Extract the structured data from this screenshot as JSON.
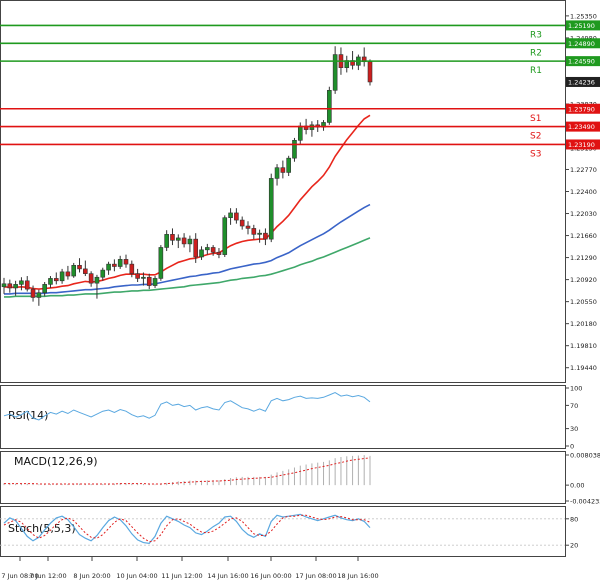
{
  "chart_data": {
    "type": "candlestick",
    "main": {
      "ylim": [
        1.192,
        1.256
      ],
      "y_ticks": [
        "1.25350",
        "1.24980",
        "1.24610",
        "1.23870",
        "1.23500",
        "1.23130",
        "1.22770",
        "1.22400",
        "1.22030",
        "1.21660",
        "1.21290",
        "1.20920",
        "1.20550",
        "1.20180",
        "1.19810",
        "1.19440"
      ],
      "current_price": "1.24236",
      "levels": [
        {
          "name": "R3",
          "value": 1.2519,
          "label": "1.25190",
          "type": "resistance"
        },
        {
          "name": "R2",
          "value": 1.2489,
          "label": "1.24890",
          "type": "resistance"
        },
        {
          "name": "R1",
          "value": 1.2459,
          "label": "1.24590",
          "type": "resistance"
        },
        {
          "name": "S1",
          "value": 1.2379,
          "label": "1.23790",
          "type": "support"
        },
        {
          "name": "S2",
          "value": 1.2349,
          "label": "1.23490",
          "type": "support"
        },
        {
          "name": "S3",
          "value": 1.2319,
          "label": "1.23190",
          "type": "support"
        }
      ],
      "candles": [
        [
          1.208,
          1.2095,
          1.2068,
          1.2085
        ],
        [
          1.2085,
          1.2092,
          1.207,
          1.2078
        ],
        [
          1.2078,
          1.209,
          1.2065,
          1.2084
        ],
        [
          1.2084,
          1.2096,
          1.2074,
          1.209
        ],
        [
          1.209,
          1.2098,
          1.2072,
          1.2076
        ],
        [
          1.2076,
          1.2082,
          1.2055,
          1.2062
        ],
        [
          1.2062,
          1.2075,
          1.2048,
          1.207
        ],
        [
          1.207,
          1.2088,
          1.2064,
          1.2084
        ],
        [
          1.2084,
          1.2098,
          1.2078,
          1.2094
        ],
        [
          1.2094,
          1.2104,
          1.2084,
          1.209
        ],
        [
          1.209,
          1.211,
          1.2085,
          1.2105
        ],
        [
          1.2105,
          1.2115,
          1.2092,
          1.2098
        ],
        [
          1.2098,
          1.212,
          1.2095,
          1.2116
        ],
        [
          1.2116,
          1.2128,
          1.2104,
          1.211
        ],
        [
          1.211,
          1.2124,
          1.2098,
          1.2102
        ],
        [
          1.2102,
          1.2106,
          1.208,
          1.2086
        ],
        [
          1.2086,
          1.21,
          1.206,
          1.2096
        ],
        [
          1.2096,
          1.2112,
          1.209,
          1.2108
        ],
        [
          1.2108,
          1.2122,
          1.21,
          1.2118
        ],
        [
          1.2118,
          1.2126,
          1.2106,
          1.2114
        ],
        [
          1.2114,
          1.2132,
          1.211,
          1.2126
        ],
        [
          1.2126,
          1.2134,
          1.2112,
          1.2118
        ],
        [
          1.2118,
          1.2124,
          1.2096,
          1.2102
        ],
        [
          1.2102,
          1.211,
          1.2088,
          1.2094
        ],
        [
          1.2094,
          1.2104,
          1.2082,
          1.2096
        ],
        [
          1.2096,
          1.2102,
          1.2076,
          1.2082
        ],
        [
          1.2082,
          1.2098,
          1.2078,
          1.2094
        ],
        [
          1.2094,
          1.215,
          1.209,
          1.2146
        ],
        [
          1.2146,
          1.2175,
          1.214,
          1.2168
        ],
        [
          1.2168,
          1.2178,
          1.215,
          1.2158
        ],
        [
          1.2158,
          1.2168,
          1.2145,
          1.2162
        ],
        [
          1.2162,
          1.217,
          1.2146,
          1.2152
        ],
        [
          1.2152,
          1.2166,
          1.2138,
          1.216
        ],
        [
          1.216,
          1.217,
          1.212,
          1.213
        ],
        [
          1.213,
          1.2148,
          1.2125,
          1.2142
        ],
        [
          1.2142,
          1.2152,
          1.2134,
          1.2146
        ],
        [
          1.2146,
          1.215,
          1.2132,
          1.2138
        ],
        [
          1.2138,
          1.2145,
          1.2128,
          1.2134
        ],
        [
          1.2134,
          1.22,
          1.213,
          1.2196
        ],
        [
          1.2196,
          1.2212,
          1.2184,
          1.2204
        ],
        [
          1.2204,
          1.2212,
          1.2186,
          1.2192
        ],
        [
          1.2192,
          1.2198,
          1.2176,
          1.2182
        ],
        [
          1.2182,
          1.219,
          1.2168,
          1.2178
        ],
        [
          1.2178,
          1.2184,
          1.216,
          1.2168
        ],
        [
          1.2168,
          1.2176,
          1.2154,
          1.217
        ],
        [
          1.217,
          1.2178,
          1.215,
          1.216
        ],
        [
          1.216,
          1.227,
          1.2155,
          1.2262
        ],
        [
          1.2262,
          1.2286,
          1.225,
          1.228
        ],
        [
          1.228,
          1.2292,
          1.2262,
          1.2272
        ],
        [
          1.2272,
          1.23,
          1.2266,
          1.2296
        ],
        [
          1.2296,
          1.233,
          1.229,
          1.2326
        ],
        [
          1.2326,
          1.2356,
          1.232,
          1.235
        ],
        [
          1.235,
          1.2362,
          1.2336,
          1.2344
        ],
        [
          1.2344,
          1.2358,
          1.2332,
          1.2352
        ],
        [
          1.2352,
          1.236,
          1.234,
          1.2348
        ],
        [
          1.2348,
          1.236,
          1.2342,
          1.2356
        ],
        [
          1.2356,
          1.2416,
          1.2352,
          1.241
        ],
        [
          1.241,
          1.2484,
          1.2404,
          1.247
        ],
        [
          1.247,
          1.2482,
          1.2436,
          1.2448
        ],
        [
          1.2448,
          1.2468,
          1.244,
          1.246
        ],
        [
          1.246,
          1.2476,
          1.2445,
          1.2452
        ],
        [
          1.2452,
          1.247,
          1.2444,
          1.2466
        ],
        [
          1.2466,
          1.2482,
          1.245,
          1.2458
        ],
        [
          1.2458,
          1.2462,
          1.2418,
          1.2424
        ]
      ],
      "moving_averages": [
        {
          "color": "#e8261c",
          "values": [
            1.208,
            1.2079,
            1.2079,
            1.208,
            1.2079,
            1.2077,
            1.2076,
            1.2077,
            1.2078,
            1.2079,
            1.2081,
            1.2082,
            1.2085,
            1.2087,
            1.2089,
            1.2088,
            1.2089,
            1.2091,
            1.2094,
            1.2096,
            1.2099,
            1.2101,
            1.2101,
            1.2101,
            1.2101,
            1.21,
            1.21,
            1.2105,
            1.2111,
            1.2116,
            1.2121,
            1.2124,
            1.2127,
            1.2128,
            1.2131,
            1.2134,
            1.2136,
            1.2137,
            1.2143,
            1.2149,
            1.2153,
            1.2156,
            1.2158,
            1.2159,
            1.216,
            1.216,
            1.217,
            1.2181,
            1.219,
            1.22,
            1.2213,
            1.2226,
            1.2237,
            1.2248,
            1.2257,
            1.2267,
            1.2281,
            1.2299,
            1.2313,
            1.2327,
            1.2339,
            1.2351,
            1.2362,
            1.2368
          ]
        },
        {
          "color": "#3a64c8",
          "values": [
            1.2068,
            1.2068,
            1.2069,
            1.2069,
            1.2069,
            1.2069,
            1.2069,
            1.2069,
            1.207,
            1.207,
            1.2071,
            1.2072,
            1.2073,
            1.2074,
            1.2075,
            1.2075,
            1.2076,
            1.2077,
            1.2078,
            1.208,
            1.2081,
            1.2082,
            1.2083,
            1.2083,
            1.2084,
            1.2084,
            1.2085,
            1.2087,
            1.2089,
            1.2091,
            1.2093,
            1.2095,
            1.2097,
            1.2098,
            1.21,
            1.2101,
            1.2103,
            1.2104,
            1.2107,
            1.211,
            1.2112,
            1.2114,
            1.2116,
            1.2118,
            1.2119,
            1.2121,
            1.2124,
            1.2129,
            1.2133,
            1.2137,
            1.2143,
            1.2149,
            1.2154,
            1.2159,
            1.2164,
            1.2169,
            1.2175,
            1.2182,
            1.2189,
            1.2195,
            1.2201,
            1.2207,
            1.2213,
            1.2218
          ]
        },
        {
          "color": "#3fa86a",
          "values": [
            1.2063,
            1.2063,
            1.2064,
            1.2064,
            1.2064,
            1.2064,
            1.2064,
            1.2064,
            1.2065,
            1.2065,
            1.2065,
            1.2066,
            1.2066,
            1.2067,
            1.2068,
            1.2068,
            1.2068,
            1.2069,
            1.207,
            1.2071,
            1.2071,
            1.2072,
            1.2073,
            1.2073,
            1.2074,
            1.2074,
            1.2075,
            1.2076,
            1.2077,
            1.2078,
            1.2079,
            1.208,
            1.2082,
            1.2083,
            1.2084,
            1.2085,
            1.2086,
            1.2087,
            1.2089,
            1.2091,
            1.2092,
            1.2094,
            1.2095,
            1.2096,
            1.2098,
            1.2099,
            1.2101,
            1.2104,
            1.2107,
            1.211,
            1.2113,
            1.2117,
            1.212,
            1.2123,
            1.2127,
            1.213,
            1.2134,
            1.2138,
            1.2142,
            1.2146,
            1.215,
            1.2154,
            1.2158,
            1.2162
          ]
        }
      ]
    },
    "rsi": {
      "label": "RSI(14)",
      "ylim": [
        0,
        100
      ],
      "ticks": [
        100,
        70,
        30,
        0
      ],
      "values": [
        52,
        55,
        50,
        54,
        60,
        48,
        45,
        52,
        58,
        55,
        60,
        56,
        62,
        58,
        54,
        50,
        55,
        60,
        62,
        58,
        63,
        60,
        54,
        50,
        52,
        48,
        53,
        72,
        76,
        70,
        72,
        68,
        70,
        62,
        66,
        68,
        64,
        62,
        75,
        78,
        72,
        66,
        64,
        60,
        64,
        60,
        78,
        82,
        78,
        80,
        84,
        86,
        82,
        83,
        82,
        84,
        88,
        92,
        86,
        88,
        85,
        87,
        84,
        76
      ]
    },
    "macd": {
      "label": "MACD(12,26,9)",
      "ylim": [
        -0.004233,
        0.008038
      ],
      "ticks": [
        "0.008038",
        "0.00",
        "-0.004233"
      ],
      "histogram": [
        0.0005,
        0.0005,
        0.0004,
        0.0004,
        0.0004,
        0.0003,
        0.0002,
        0.0002,
        0.0003,
        0.0003,
        0.0003,
        0.0003,
        0.0004,
        0.0004,
        0.0004,
        0.0003,
        0.0003,
        0.0003,
        0.0004,
        0.0004,
        0.0005,
        0.0005,
        0.0004,
        0.0003,
        0.0003,
        0.0002,
        0.0002,
        0.0004,
        0.0006,
        0.0008,
        0.001,
        0.0011,
        0.0012,
        0.0012,
        0.0012,
        0.0013,
        0.0013,
        0.0013,
        0.0016,
        0.0019,
        0.0021,
        0.0022,
        0.0022,
        0.0022,
        0.0022,
        0.0022,
        0.0028,
        0.0034,
        0.0038,
        0.0042,
        0.0047,
        0.0052,
        0.0055,
        0.0058,
        0.006,
        0.0062,
        0.0066,
        0.0072,
        0.0075,
        0.0077,
        0.0078,
        0.0079,
        0.008,
        0.0078
      ],
      "signal": [
        0.0004,
        0.0004,
        0.0004,
        0.0004,
        0.0004,
        0.0004,
        0.0003,
        0.0003,
        0.0003,
        0.0003,
        0.0003,
        0.0003,
        0.0003,
        0.0003,
        0.0003,
        0.0003,
        0.0003,
        0.0003,
        0.0003,
        0.0003,
        0.0004,
        0.0004,
        0.0004,
        0.0004,
        0.0004,
        0.0003,
        0.0003,
        0.0003,
        0.0004,
        0.0005,
        0.0006,
        0.0007,
        0.0008,
        0.0009,
        0.001,
        0.001,
        0.0011,
        0.0011,
        0.0012,
        0.0013,
        0.0015,
        0.0016,
        0.0017,
        0.0018,
        0.0019,
        0.002,
        0.0021,
        0.0024,
        0.0027,
        0.003,
        0.0033,
        0.0037,
        0.004,
        0.0044,
        0.0047,
        0.005,
        0.0053,
        0.0057,
        0.006,
        0.0064,
        0.0067,
        0.0069,
        0.0071,
        0.0073
      ]
    },
    "stoch": {
      "label": "Stoch(5,5,3)",
      "ylim": [
        0,
        100
      ],
      "ticks": [
        80,
        20
      ],
      "main": [
        70,
        82,
        76,
        58,
        40,
        30,
        38,
        55,
        70,
        82,
        86,
        78,
        62,
        44,
        36,
        30,
        42,
        60,
        76,
        84,
        78,
        64,
        46,
        32,
        26,
        24,
        40,
        70,
        86,
        80,
        74,
        66,
        60,
        48,
        44,
        52,
        62,
        70,
        84,
        86,
        74,
        56,
        44,
        38,
        46,
        40,
        74,
        88,
        84,
        86,
        88,
        90,
        84,
        80,
        76,
        80,
        84,
        88,
        82,
        78,
        76,
        80,
        74,
        60
      ],
      "signal": [
        66,
        72,
        78,
        72,
        58,
        44,
        36,
        42,
        54,
        68,
        78,
        82,
        76,
        62,
        48,
        38,
        36,
        44,
        58,
        72,
        80,
        76,
        62,
        48,
        36,
        28,
        30,
        44,
        64,
        78,
        80,
        74,
        68,
        58,
        50,
        48,
        52,
        60,
        70,
        80,
        82,
        74,
        60,
        46,
        42,
        42,
        52,
        68,
        82,
        86,
        86,
        88,
        88,
        84,
        80,
        78,
        80,
        84,
        85,
        82,
        78,
        78,
        78,
        72
      ]
    },
    "x_ticks": [
      "7 Jun 08:00",
      "7 Jun 12:00",
      "8 Jun 20:00",
      "10 Jun 04:00",
      "11 Jun 12:00",
      "14 Jun 16:00",
      "16 Jun 00:00",
      "17 Jun 08:00",
      "18 Jun 16:00"
    ],
    "colors": {
      "bull": "#1f8f2b",
      "bear": "#cc1f1f",
      "resistance": "#1f9a1f",
      "support": "#e01212",
      "indicator": "#5aa8e0"
    }
  }
}
